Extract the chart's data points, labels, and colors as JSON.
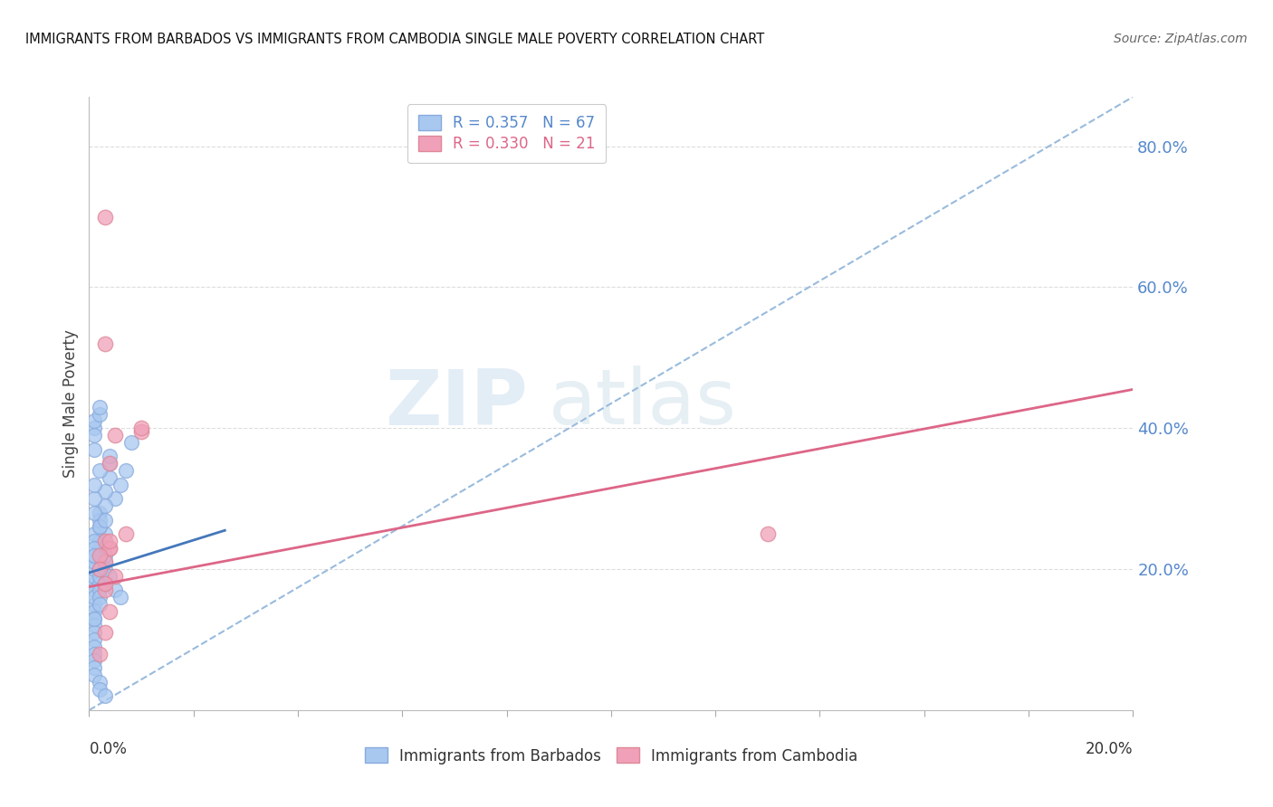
{
  "title": "IMMIGRANTS FROM BARBADOS VS IMMIGRANTS FROM CAMBODIA SINGLE MALE POVERTY CORRELATION CHART",
  "source": "Source: ZipAtlas.com",
  "ylabel": "Single Male Poverty",
  "watermark_zip": "ZIP",
  "watermark_atlas": "atlas",
  "barbados_color": "#a8c8f0",
  "barbados_edge_color": "#88aadd",
  "cambodia_color": "#f0a0b8",
  "cambodia_edge_color": "#dd8899",
  "barbados_line_color": "#4477bb",
  "cambodia_line_color": "#dd6688",
  "dashed_line_color": "#99bbdd",
  "right_label_color": "#5588cc",
  "xlim": [
    0.0,
    0.2
  ],
  "ylim": [
    0.0,
    0.87
  ],
  "barbados_x": [
    0.001,
    0.001,
    0.001,
    0.001,
    0.002,
    0.001,
    0.001,
    0.001,
    0.001,
    0.001,
    0.001,
    0.001,
    0.001,
    0.001,
    0.001,
    0.001,
    0.001,
    0.002,
    0.002,
    0.002,
    0.002,
    0.002,
    0.002,
    0.002,
    0.002,
    0.003,
    0.003,
    0.003,
    0.003,
    0.003,
    0.004,
    0.004,
    0.004,
    0.005,
    0.005,
    0.006,
    0.006,
    0.007,
    0.008,
    0.001,
    0.001,
    0.001,
    0.002,
    0.002,
    0.002,
    0.003,
    0.003,
    0.004,
    0.001,
    0.001,
    0.002,
    0.002,
    0.003,
    0.001,
    0.001,
    0.001,
    0.001,
    0.002,
    0.002,
    0.001,
    0.001,
    0.002,
    0.003,
    0.001,
    0.001,
    0.002,
    0.001
  ],
  "barbados_y": [
    0.18,
    0.17,
    0.19,
    0.2,
    0.18,
    0.15,
    0.16,
    0.21,
    0.14,
    0.13,
    0.12,
    0.22,
    0.11,
    0.1,
    0.09,
    0.08,
    0.07,
    0.19,
    0.2,
    0.17,
    0.16,
    0.22,
    0.15,
    0.23,
    0.24,
    0.21,
    0.22,
    0.18,
    0.2,
    0.25,
    0.19,
    0.33,
    0.35,
    0.17,
    0.3,
    0.32,
    0.16,
    0.34,
    0.38,
    0.25,
    0.24,
    0.23,
    0.28,
    0.26,
    0.27,
    0.29,
    0.31,
    0.36,
    0.06,
    0.05,
    0.04,
    0.03,
    0.02,
    0.4,
    0.39,
    0.37,
    0.41,
    0.42,
    0.43,
    0.13,
    0.28,
    0.26,
    0.27,
    0.3,
    0.32,
    0.34,
    0.22
  ],
  "cambodia_x": [
    0.003,
    0.003,
    0.01,
    0.005,
    0.004,
    0.01,
    0.004,
    0.003,
    0.005,
    0.004,
    0.003,
    0.007,
    0.004,
    0.003,
    0.003,
    0.004,
    0.002,
    0.003,
    0.002,
    0.13,
    0.002
  ],
  "cambodia_y": [
    0.7,
    0.52,
    0.395,
    0.39,
    0.35,
    0.4,
    0.23,
    0.24,
    0.19,
    0.23,
    0.21,
    0.25,
    0.14,
    0.17,
    0.11,
    0.24,
    0.08,
    0.18,
    0.22,
    0.25,
    0.2
  ],
  "barbados_line_x": [
    0.0,
    0.026
  ],
  "barbados_line_y": [
    0.195,
    0.255
  ],
  "cambodia_line_x": [
    0.0,
    0.2
  ],
  "cambodia_line_y": [
    0.175,
    0.455
  ],
  "diag_line_x": [
    0.0,
    0.2
  ],
  "diag_line_y": [
    0.0,
    0.87
  ]
}
